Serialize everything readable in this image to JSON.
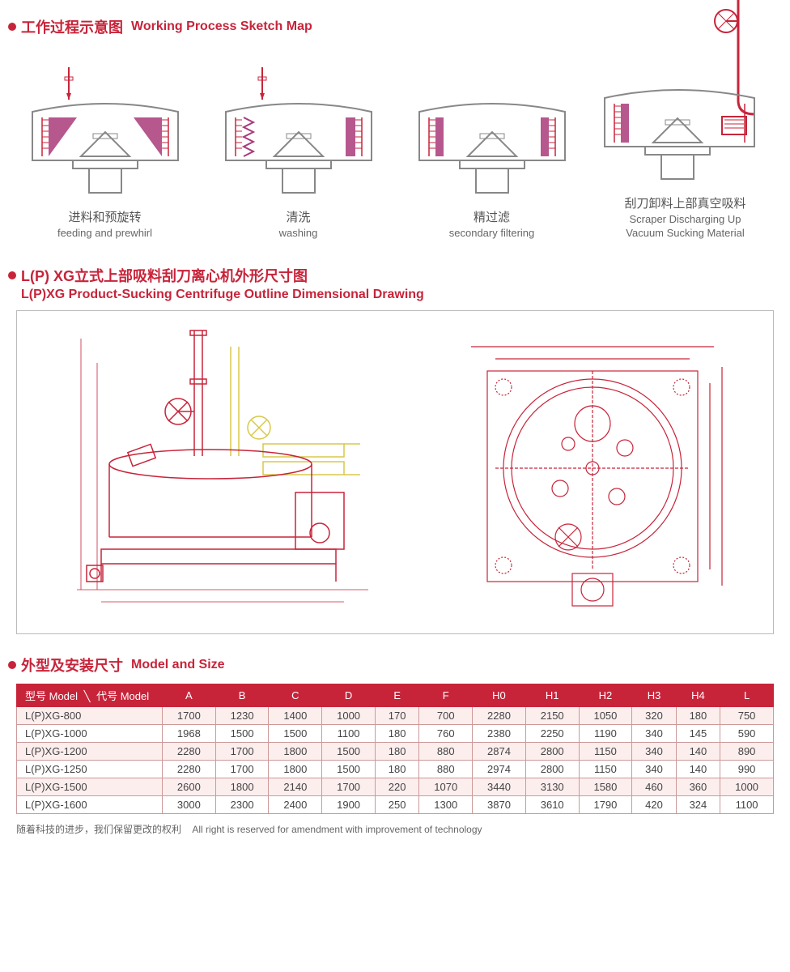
{
  "colors": {
    "accent": "#c7243a",
    "fill": "#a93a7a",
    "stroke": "#c7243a",
    "gray": "#888888",
    "lightgray": "#bbbbbb",
    "text": "#555555"
  },
  "section1": {
    "title_cn": "工作过程示意图",
    "title_en": "Working Process Sketch Map",
    "steps": [
      {
        "label_cn": "进料和预旋转",
        "label_en": "feeding and prewhirl"
      },
      {
        "label_cn": "清洗",
        "label_en": "washing"
      },
      {
        "label_cn": "精过滤",
        "label_en": "secondary filtering"
      },
      {
        "label_cn": "刮刀卸料上部真空吸料",
        "label_en": "Scraper Discharging Up\nVacuum Sucking Material"
      }
    ]
  },
  "section2": {
    "title_cn": "L(P) XG立式上部吸料刮刀离心机外形尺寸图",
    "title_en": "L(P)XG Product-Sucking Centrifuge Outline Dimensional Drawing"
  },
  "section3": {
    "title_cn": "外型及安装尺寸",
    "title_en": "Model and Size",
    "header_model_cn": "型号 Model",
    "header_model_cn2": "代号 Model",
    "columns": [
      "A",
      "B",
      "C",
      "D",
      "E",
      "F",
      "H0",
      "H1",
      "H2",
      "H3",
      "H4",
      "L"
    ],
    "rows": [
      {
        "model": "L(P)XG-800",
        "v": [
          "1700",
          "1230",
          "1400",
          "1000",
          "170",
          "700",
          "2280",
          "2150",
          "1050",
          "320",
          "180",
          "750"
        ]
      },
      {
        "model": "L(P)XG-1000",
        "v": [
          "1968",
          "1500",
          "1500",
          "1100",
          "180",
          "760",
          "2380",
          "2250",
          "1190",
          "340",
          "145",
          "590"
        ]
      },
      {
        "model": "L(P)XG-1200",
        "v": [
          "2280",
          "1700",
          "1800",
          "1500",
          "180",
          "880",
          "2874",
          "2800",
          "1150",
          "340",
          "140",
          "890"
        ]
      },
      {
        "model": "L(P)XG-1250",
        "v": [
          "2280",
          "1700",
          "1800",
          "1500",
          "180",
          "880",
          "2974",
          "2800",
          "1150",
          "340",
          "140",
          "990"
        ]
      },
      {
        "model": "L(P)XG-1500",
        "v": [
          "2600",
          "1800",
          "2140",
          "1700",
          "220",
          "1070",
          "3440",
          "3130",
          "1580",
          "460",
          "360",
          "1000"
        ]
      },
      {
        "model": "L(P)XG-1600",
        "v": [
          "3000",
          "2300",
          "2400",
          "1900",
          "250",
          "1300",
          "3870",
          "3610",
          "1790",
          "420",
          "324",
          "1100"
        ]
      }
    ]
  },
  "footnote_cn": "随着科技的进步，我们保留更改的权利",
  "footnote_en": "All right is reserved for amendment with improvement of technology"
}
